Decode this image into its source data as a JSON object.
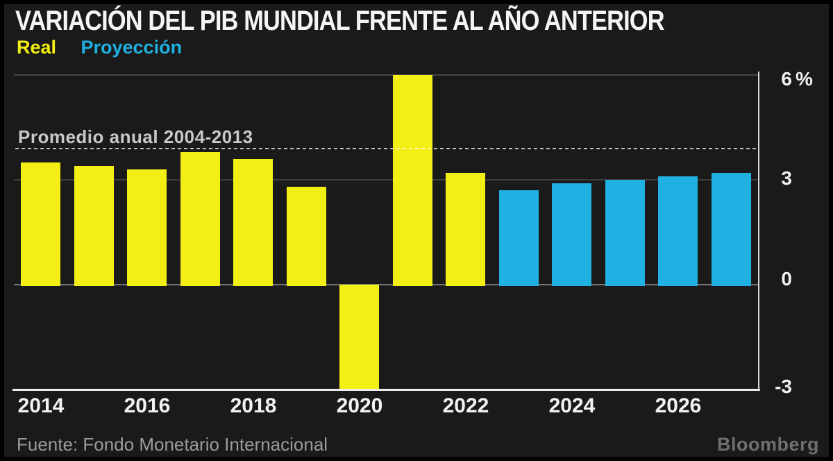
{
  "header": {
    "title": "VARIACIÓN DEL PIB MUNDIAL FRENTE AL AÑO ANTERIOR",
    "legend": {
      "real": "Real",
      "proyeccion": "Proyección"
    }
  },
  "annotation": {
    "label": "Promedio anual 2004-2013",
    "value": 3.9
  },
  "axis": {
    "y_ticks": [
      {
        "label": "6",
        "unit": "%",
        "value": 6
      },
      {
        "label": "3",
        "value": 3
      },
      {
        "label": "0",
        "value": 0
      },
      {
        "label": "-3",
        "value": -3
      }
    ],
    "x_ticks": [
      "2014",
      "2016",
      "2018",
      "2020",
      "2022",
      "2024",
      "2026"
    ]
  },
  "footer": {
    "source": "Fuente: Fondo Monetario Internacional",
    "brand": "Bloomberg"
  },
  "colors": {
    "real": "#f3ee13",
    "proyeccion": "#1fb1e2",
    "background": "#1a1a1a",
    "grid_top": "#474747",
    "grid_mid": "#3d3d3d",
    "grid_zero": "#757575",
    "axis_line": "#ededed",
    "spine": "#d9d9d9"
  },
  "chart_data": {
    "type": "bar",
    "title": "VARIACIÓN DEL PIB MUNDIAL FRENTE AL AÑO ANTERIOR",
    "unit": "%",
    "ylim": [
      -3,
      6
    ],
    "yticks": [
      6,
      3,
      0,
      -3
    ],
    "xticks": [
      2014,
      2016,
      2018,
      2020,
      2022,
      2024,
      2026
    ],
    "grid": true,
    "legend_position": "top-left",
    "reference_line": {
      "label": "Promedio anual 2004-2013",
      "value": 3.9
    },
    "source": "Fondo Monetario Internacional",
    "series": [
      {
        "name": "Real",
        "color": "#f3ee13",
        "x": [
          2014,
          2015,
          2016,
          2017,
          2018,
          2019,
          2020,
          2021,
          2022
        ],
        "values": [
          3.5,
          3.4,
          3.3,
          3.8,
          3.6,
          2.8,
          -3.0,
          6.0,
          3.2
        ]
      },
      {
        "name": "Proyección",
        "color": "#1fb1e2",
        "x": [
          2023,
          2024,
          2025,
          2026,
          2027
        ],
        "values": [
          2.7,
          2.9,
          3.0,
          3.1,
          3.2
        ]
      }
    ]
  }
}
